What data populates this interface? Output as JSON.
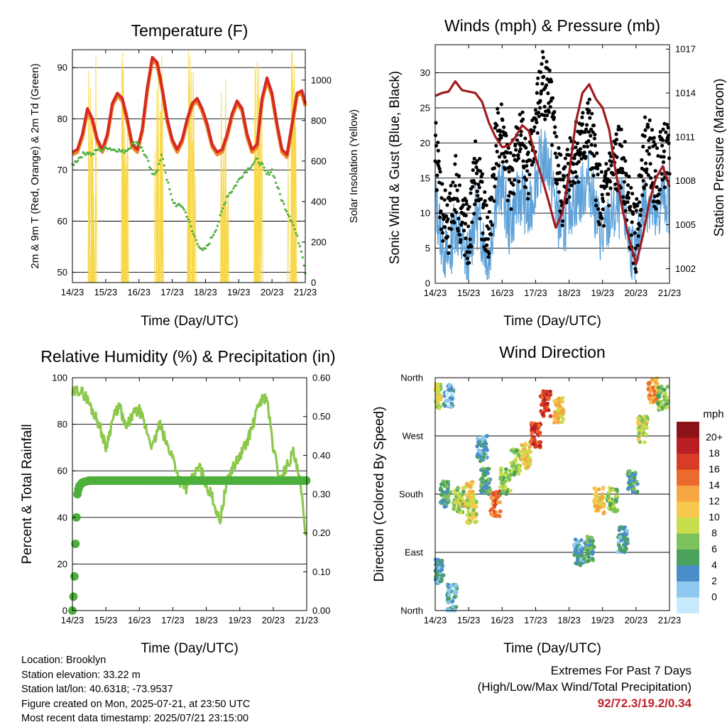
{
  "panels": {
    "temperature": {
      "title": "Temperature (F)",
      "xlabel": "Time (Day/UTC)",
      "ylabel_left": "2m & 9m T (Red, Orange) & 2m Td (Green)",
      "ylabel_right": "Solar Insolation (Yellow)"
    },
    "winds": {
      "title": "Winds (mph) & Pressure (mb)",
      "xlabel": "Time (Day/UTC)",
      "ylabel_left": "Sonic Wind & Gust (Blue, Black)",
      "ylabel_right": "Station Pressure (Maroon)"
    },
    "humidity": {
      "title": "Relative Humidity (%) & Precipitation (in)",
      "xlabel": "Time (Day/UTC)",
      "ylabel_left": "Percent & Total Rainfall"
    },
    "direction": {
      "title": "Wind Direction",
      "xlabel": "Time (Day/UTC)",
      "ylabel_left": "Direction (Colored By Speed)",
      "legend_title": "mph"
    }
  },
  "colors": {
    "temp2m": "#d42a22",
    "temp9m": "#f08a2a",
    "dewpoint": "#4daf3c",
    "solar": "#f7d84a",
    "wind": "#5fa2d9",
    "gust": "#000000",
    "pressure": "#a01c20",
    "rh": "#8cc84b",
    "precip": "#4daf3c",
    "speed_scale": [
      "#c6e9fb",
      "#8ec8ee",
      "#4a8ec9",
      "#4aa15c",
      "#7dc15a",
      "#c7dd4a",
      "#f7c84d",
      "#f5a542",
      "#ec6a2d",
      "#d83b26",
      "#b81e22",
      "#8b1216"
    ]
  },
  "chart_data": [
    {
      "id": "temperature",
      "type": "line",
      "x_ticks": [
        "14/23",
        "15/23",
        "16/23",
        "17/23",
        "18/23",
        "19/23",
        "20/23",
        "21/23"
      ],
      "x": [
        0,
        0.15,
        0.3,
        0.45,
        0.6,
        0.75,
        0.9,
        1.05,
        1.2,
        1.35,
        1.5,
        1.65,
        1.8,
        1.95,
        2.1,
        2.25,
        2.4,
        2.55,
        2.7,
        2.85,
        3.0,
        3.15,
        3.3,
        3.45,
        3.6,
        3.75,
        3.9,
        4.05,
        4.2,
        4.35,
        4.5,
        4.65,
        4.8,
        4.95,
        5.1,
        5.25,
        5.4,
        5.55,
        5.7,
        5.85,
        6.0,
        6.15,
        6.3,
        6.45,
        6.6,
        6.75,
        6.9,
        7.0
      ],
      "ylim_left": [
        48,
        93.5
      ],
      "yticks_left": [
        50,
        60,
        70,
        80,
        90
      ],
      "ylim_right": [
        0,
        1150
      ],
      "yticks_right": [
        0,
        200,
        400,
        600,
        800,
        1000
      ],
      "series": [
        {
          "name": "2m T",
          "color": "#d42a22",
          "values": [
            73.5,
            74,
            77,
            82,
            80,
            76,
            74,
            77,
            83,
            85,
            84,
            80,
            75,
            74,
            78,
            86,
            92,
            91,
            86,
            80,
            76,
            74,
            76,
            80,
            83,
            84,
            82,
            79,
            75,
            73.5,
            74,
            77,
            81,
            83.5,
            82,
            77,
            74,
            75,
            84,
            88,
            85,
            79,
            74,
            73,
            79,
            85,
            85.5,
            83
          ]
        },
        {
          "name": "9m T",
          "color": "#f08a2a",
          "values": [
            73,
            73.5,
            76.5,
            81.5,
            79.5,
            75.5,
            73.5,
            76.5,
            82.5,
            84.5,
            83.5,
            79.5,
            74.5,
            73.5,
            77.5,
            85.5,
            91.5,
            90.5,
            85.5,
            79.5,
            75.5,
            73.5,
            75.5,
            79.5,
            82.5,
            83.5,
            81.5,
            78.5,
            74.5,
            73,
            73.5,
            76.5,
            80.5,
            83,
            81.5,
            76.5,
            73.5,
            74.5,
            83.5,
            87.5,
            84.5,
            78.5,
            73.5,
            72.5,
            78.5,
            84.5,
            85,
            82.5
          ]
        },
        {
          "name": "2m Td",
          "color": "#4daf3c",
          "values": [
            71,
            72,
            73,
            73.5,
            73,
            74,
            74,
            74.5,
            74,
            74,
            73.5,
            74,
            75,
            75.5,
            74,
            72,
            69,
            70,
            73,
            68,
            64,
            63,
            63,
            61,
            58,
            56,
            54,
            55,
            57,
            59,
            62,
            65,
            66,
            67.5,
            69,
            70,
            71,
            72,
            71,
            69,
            70,
            67,
            64,
            62,
            60,
            57,
            54,
            50
          ]
        }
      ],
      "solar_days": [
        0.4,
        0.6,
        1.4,
        1.6,
        2.4,
        2.6,
        3.4,
        3.6,
        4.4,
        4.6,
        5.4,
        5.6,
        6.4,
        6.6
      ]
    },
    {
      "id": "winds",
      "type": "line",
      "x_ticks": [
        "14/23",
        "15/23",
        "16/23",
        "17/23",
        "18/23",
        "19/23",
        "20/23",
        "21/23"
      ],
      "x": [
        0,
        0.2,
        0.4,
        0.6,
        0.8,
        1.0,
        1.2,
        1.4,
        1.6,
        1.8,
        2.0,
        2.2,
        2.4,
        2.6,
        2.8,
        3.0,
        3.2,
        3.4,
        3.6,
        3.8,
        4.0,
        4.2,
        4.4,
        4.6,
        4.8,
        5.0,
        5.2,
        5.4,
        5.6,
        5.8,
        6.0,
        6.2,
        6.4,
        6.6,
        6.8,
        7.0
      ],
      "ylim_left": [
        0,
        34
      ],
      "yticks_left": [
        0,
        5,
        10,
        15,
        20,
        25,
        30
      ],
      "ylim_right": [
        1001,
        1017.3
      ],
      "yticks_right": [
        1002,
        1005,
        1008,
        1011,
        1014,
        1017
      ],
      "series": [
        {
          "name": "Pressure",
          "color": "#a01c20",
          "values": [
            1013.8,
            1014,
            1014.1,
            1014.8,
            1014.2,
            1014.1,
            1014,
            1013.4,
            1012,
            1011,
            1010.3,
            1010.4,
            1011,
            1011.8,
            1011.4,
            1009.6,
            1008.1,
            1006.5,
            1004.8,
            1005.8,
            1008.5,
            1012,
            1014,
            1014.6,
            1013.6,
            1013,
            1011.5,
            1008.5,
            1006,
            1004,
            1002.3,
            1004.2,
            1006.6,
            1008.2,
            1009,
            1007.6
          ]
        },
        {
          "name": "Sonic Wind",
          "color": "#5fa2d9",
          "values": [
            12,
            6,
            3,
            9,
            5,
            3,
            10,
            7,
            3,
            12,
            14,
            8,
            11,
            13,
            9,
            15,
            18,
            17,
            11,
            7,
            11,
            12,
            13,
            15,
            10,
            6,
            9,
            10,
            11,
            6,
            3,
            11,
            12,
            8,
            13,
            11
          ]
        },
        {
          "name": "Gust",
          "color": "#000000",
          "values": [
            20,
            11,
            7,
            14,
            9,
            6,
            16,
            11,
            6,
            19,
            22,
            14,
            18,
            21,
            15,
            23,
            29,
            27,
            18,
            12,
            17,
            19,
            20,
            22,
            16,
            10,
            15,
            17,
            18,
            10,
            6,
            18,
            20,
            14,
            19,
            17
          ]
        }
      ]
    },
    {
      "id": "humidity",
      "type": "line",
      "x_ticks": [
        "14/23",
        "15/23",
        "16/23",
        "17/23",
        "18/23",
        "19/23",
        "20/23",
        "21/23"
      ],
      "x": [
        0,
        0.2,
        0.4,
        0.6,
        0.8,
        1.0,
        1.2,
        1.4,
        1.6,
        1.8,
        2.0,
        2.2,
        2.4,
        2.6,
        2.8,
        3.0,
        3.2,
        3.4,
        3.6,
        3.8,
        4.0,
        4.2,
        4.4,
        4.6,
        4.8,
        5.0,
        5.2,
        5.4,
        5.6,
        5.8,
        6.0,
        6.2,
        6.4,
        6.6,
        6.8,
        7.0
      ],
      "ylim_left": [
        0,
        100
      ],
      "yticks_left": [
        0,
        20,
        40,
        60,
        80,
        100
      ],
      "ylim_right": [
        0,
        0.6
      ],
      "yticks_right": [
        "0.00",
        "0.10",
        "0.20",
        "0.30",
        "0.40",
        "0.50",
        "0.60"
      ],
      "series": [
        {
          "name": "RH",
          "color": "#8cc84b",
          "values": [
            93,
            95,
            92,
            86,
            80,
            70,
            82,
            88,
            78,
            84,
            86,
            78,
            70,
            80,
            72,
            66,
            56,
            52,
            57,
            62,
            54,
            48,
            38,
            54,
            62,
            66,
            72,
            80,
            90,
            92,
            70,
            56,
            62,
            68,
            55,
            30
          ]
        },
        {
          "name": "Precipitation",
          "color": "#4daf3c",
          "unit": "in",
          "x": [
            0,
            0.05,
            0.1,
            0.15,
            0.2,
            0.3,
            0.5,
            1,
            2,
            3,
            4,
            5,
            6,
            7
          ],
          "values": [
            0,
            0.06,
            0.2,
            0.3,
            0.32,
            0.33,
            0.335,
            0.335,
            0.335,
            0.335,
            0.335,
            0.335,
            0.335,
            0.335
          ]
        }
      ]
    },
    {
      "id": "direction",
      "type": "scatter",
      "x_ticks": [
        "14/23",
        "15/23",
        "16/23",
        "17/23",
        "18/23",
        "19/23",
        "20/23",
        "21/23"
      ],
      "yticks_left": [
        "North",
        "East",
        "South",
        "West",
        "North"
      ],
      "ylim_left": [
        0,
        360
      ],
      "legend": {
        "title": "mph",
        "labels": [
          "20+",
          "18",
          "16",
          "14",
          "12",
          "10",
          "8",
          "6",
          "4",
          "2",
          "0"
        ]
      },
      "clusters": [
        {
          "x": 0.05,
          "dir": 330,
          "speed": 10
        },
        {
          "x": 0.4,
          "dir": 330,
          "speed": 3
        },
        {
          "x": 0.1,
          "dir": 60,
          "speed": 4
        },
        {
          "x": 0.5,
          "dir": 20,
          "speed": 4
        },
        {
          "x": 0.3,
          "dir": 180,
          "speed": 6
        },
        {
          "x": 0.7,
          "dir": 170,
          "speed": 9
        },
        {
          "x": 1.0,
          "dir": 180,
          "speed": 12
        },
        {
          "x": 1.1,
          "dir": 155,
          "speed": 10
        },
        {
          "x": 1.4,
          "dir": 250,
          "speed": 4
        },
        {
          "x": 1.5,
          "dir": 200,
          "speed": 6
        },
        {
          "x": 1.8,
          "dir": 165,
          "speed": 16
        },
        {
          "x": 2.1,
          "dir": 200,
          "speed": 8
        },
        {
          "x": 2.4,
          "dir": 230,
          "speed": 8
        },
        {
          "x": 2.7,
          "dir": 240,
          "speed": 12
        },
        {
          "x": 3.0,
          "dir": 270,
          "speed": 18
        },
        {
          "x": 3.3,
          "dir": 320,
          "speed": 18
        },
        {
          "x": 3.7,
          "dir": 310,
          "speed": 12
        },
        {
          "x": 4.3,
          "dir": 90,
          "speed": 4
        },
        {
          "x": 4.6,
          "dir": 95,
          "speed": 6
        },
        {
          "x": 4.9,
          "dir": 170,
          "speed": 12
        },
        {
          "x": 5.3,
          "dir": 170,
          "speed": 8
        },
        {
          "x": 5.6,
          "dir": 110,
          "speed": 4
        },
        {
          "x": 5.9,
          "dir": 200,
          "speed": 6
        },
        {
          "x": 6.2,
          "dir": 280,
          "speed": 10
        },
        {
          "x": 6.5,
          "dir": 340,
          "speed": 14
        },
        {
          "x": 6.8,
          "dir": 330,
          "speed": 8
        }
      ]
    }
  ],
  "info": {
    "location": "Location: Brooklyn",
    "elevation": "Station elevation: 33.22 m",
    "latlon": "Station lat/lon: 40.6318; -73.9537",
    "created": "Figure created on Mon, 2025-07-21, at 23:50 UTC",
    "timestamp": "Most recent data timestamp: 2025/07/21 23:15:00"
  },
  "extremes": {
    "title": "Extremes For Past 7 Days",
    "subtitle": "(High/Low/Max Wind/Total Precipitation)",
    "values": "92/72.3/19.2/0.34"
  }
}
